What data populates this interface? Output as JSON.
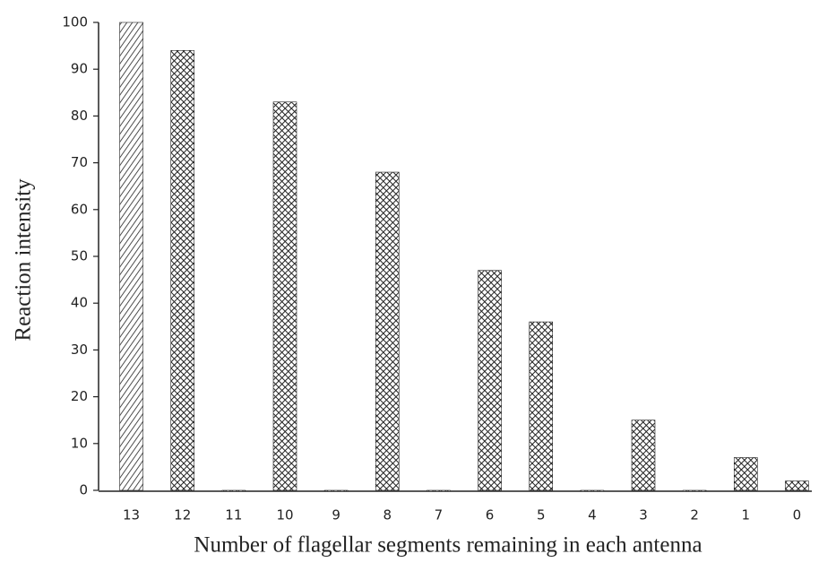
{
  "chart_data": {
    "type": "bar",
    "xlabel": "Number of flagellar segments remaining in each antenna",
    "ylabel": "Reaction intensity",
    "categories": [
      "13",
      "12",
      "11",
      "10",
      "9",
      "8",
      "7",
      "6",
      "5",
      "4",
      "3",
      "2",
      "1",
      "0"
    ],
    "values": [
      100,
      94,
      0,
      83,
      0,
      68,
      0,
      47,
      36,
      0,
      15,
      0,
      7,
      2
    ],
    "patterns": [
      "hatch",
      "cross",
      "cross",
      "cross",
      "cross",
      "cross",
      "cross",
      "cross",
      "cross",
      "cross",
      "cross",
      "cross",
      "cross",
      "cross"
    ],
    "color": "#222222",
    "ylim": [
      0,
      100
    ],
    "yticks": [
      0,
      10,
      20,
      30,
      40,
      50,
      60,
      70,
      80,
      90,
      100
    ],
    "grid": false
  }
}
